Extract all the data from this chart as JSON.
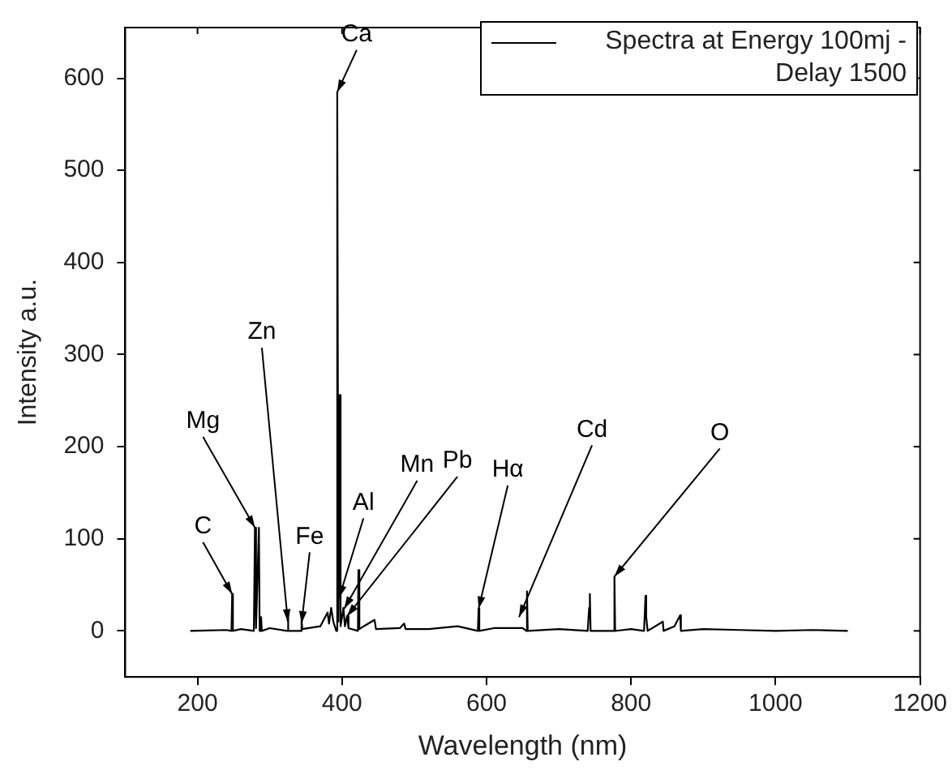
{
  "chart_data": {
    "type": "line",
    "xlabel": "Wavelength (nm)",
    "ylabel": "Intensity a.u.",
    "xlim": [
      100,
      1200
    ],
    "xticks": [
      200,
      400,
      600,
      800,
      1000,
      1200
    ],
    "ylim": [
      -50,
      655
    ],
    "yticks": [
      0,
      100,
      200,
      300,
      400,
      500,
      600
    ],
    "grid": false,
    "legend": "top right",
    "marker": "none",
    "line_style": "solid",
    "series": [
      {
        "name": "Spectra at Energy 100mj - Delay 1500",
        "color": "#000000",
        "x": [
          190,
          240,
          247,
          248,
          249,
          260,
          278,
          279.5,
          281,
          285,
          286,
          288,
          289,
          300,
          324,
          325,
          326,
          343,
          344,
          345,
          370,
          380,
          382,
          385,
          388,
          392,
          393.4,
          395,
          396.8,
          398,
          402,
          404,
          407,
          409,
          422,
          422.7,
          424,
          430,
          445,
          447,
          480,
          486,
          488,
          520,
          560,
          588,
          589,
          590,
          610,
          650,
          655,
          656,
          657,
          700,
          740,
          742,
          743,
          744,
          776,
          777,
          778,
          800,
          818,
          820,
          821,
          823,
          844,
          845,
          860,
          868,
          869,
          900,
          950,
          1000,
          1050,
          1100
        ],
        "values": [
          0,
          1,
          0,
          40,
          0,
          2,
          0,
          112,
          3,
          112,
          0,
          15,
          0,
          3,
          0,
          20,
          0,
          0,
          12,
          2,
          5,
          20,
          8,
          25,
          10,
          0,
          585,
          10,
          256,
          5,
          25,
          5,
          16,
          3,
          0,
          66,
          2,
          5,
          12,
          2,
          3,
          8,
          2,
          2,
          5,
          0,
          24,
          0,
          3,
          3,
          0,
          43,
          0,
          2,
          0,
          25,
          40,
          0,
          0,
          59,
          0,
          2,
          0,
          38,
          15,
          0,
          10,
          0,
          5,
          17,
          0,
          2,
          1,
          0,
          1,
          0
        ]
      }
    ],
    "annotations": [
      {
        "text": "Ca",
        "x": 393.4,
        "y": 585
      },
      {
        "text": "C",
        "x": 248,
        "y": 40
      },
      {
        "text": "Mg",
        "x": 279.5,
        "y": 112
      },
      {
        "text": "Zn",
        "x": 325,
        "y": 10
      },
      {
        "text": "Fe",
        "x": 344,
        "y": 8
      },
      {
        "text": "Al",
        "x": 396,
        "y": 36
      },
      {
        "text": "Mn",
        "x": 403,
        "y": 24
      },
      {
        "text": "Pb",
        "x": 407,
        "y": 16
      },
      {
        "text": "Hα",
        "x": 589,
        "y": 24
      },
      {
        "text": "Cd",
        "x": 645,
        "y": 15
      },
      {
        "text": "O",
        "x": 777,
        "y": 59
      }
    ]
  }
}
